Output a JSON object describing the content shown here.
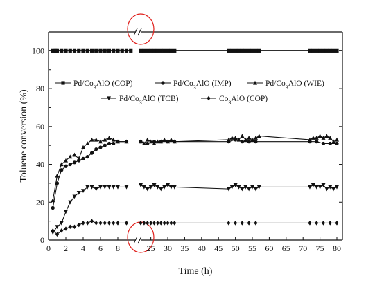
{
  "chart_data": {
    "type": "line",
    "title": "",
    "xlabel": "Time (h)",
    "ylabel": "Toluene conversion (%)",
    "ylim": [
      0,
      110
    ],
    "x_break": {
      "from": 10,
      "to": 22
    },
    "x_ticks_left": [
      0,
      2,
      4,
      6,
      8
    ],
    "x_ticks_right": [
      25,
      30,
      35,
      40,
      45,
      50,
      55,
      60,
      65,
      70,
      75,
      80
    ],
    "y_ticks": [
      0,
      20,
      40,
      60,
      80,
      100
    ],
    "legend_placement": "center",
    "series": [
      {
        "name": "Pd/Co3AlO (COP)",
        "legend_sub": "3",
        "marker": "square",
        "x": [
          0.5,
          0.8,
          1,
          1.5,
          2,
          2.5,
          3,
          3.5,
          4,
          4.5,
          5,
          5.5,
          6,
          6.5,
          7,
          7.5,
          8,
          8.5,
          9,
          9.5,
          22,
          23,
          24,
          25,
          26,
          27,
          28,
          29,
          30,
          31,
          32,
          48,
          49,
          50,
          51,
          52,
          53,
          54,
          55,
          56,
          57,
          72,
          73,
          74,
          75,
          76,
          77,
          78,
          79,
          80
        ],
        "values": [
          100,
          100,
          100,
          100,
          100,
          100,
          100,
          100,
          100,
          100,
          100,
          100,
          100,
          100,
          100,
          100,
          100,
          100,
          100,
          100,
          100,
          100,
          100,
          100,
          100,
          100,
          100,
          100,
          100,
          100,
          100,
          100,
          100,
          100,
          100,
          100,
          100,
          100,
          100,
          100,
          100,
          100,
          100,
          100,
          100,
          100,
          100,
          100,
          100,
          100
        ]
      },
      {
        "name": "Pd/Co3AlO (IMP)",
        "legend_sub": "3",
        "marker": "circle",
        "x": [
          0.5,
          1,
          1.5,
          2,
          2.5,
          3,
          3.5,
          4,
          4.5,
          5,
          5.5,
          6,
          6.5,
          7,
          7.5,
          8,
          9,
          22,
          24,
          26,
          28,
          30,
          32,
          48,
          50,
          52,
          54,
          56,
          72,
          74,
          76,
          78,
          80
        ],
        "values": [
          17,
          30,
          37,
          39,
          40,
          41,
          42,
          43,
          44,
          46,
          48,
          49,
          50,
          51,
          51,
          52,
          52,
          52,
          51,
          52,
          52,
          52,
          52,
          52,
          53,
          52,
          52,
          52,
          52,
          52,
          51,
          51,
          51
        ]
      },
      {
        "name": "Pd/Co3AlO (WIE)",
        "legend_sub": "3",
        "marker": "triangle-up",
        "x": [
          0.5,
          1,
          1.5,
          2,
          2.5,
          3,
          3.5,
          4,
          4.5,
          5,
          5.5,
          6,
          6.5,
          7,
          7.5,
          8,
          9,
          22,
          23,
          24,
          25,
          26,
          27,
          28,
          29,
          30,
          31,
          32,
          48,
          49,
          50,
          51,
          52,
          53,
          54,
          55,
          56,
          57,
          72,
          73,
          74,
          75,
          76,
          77,
          78,
          79,
          80
        ],
        "values": [
          21,
          34,
          40,
          42,
          44,
          45,
          43,
          49,
          51,
          53,
          53,
          52,
          53,
          54,
          53,
          52,
          52,
          52,
          51,
          53,
          52,
          51,
          52,
          52,
          53,
          52,
          53,
          52,
          53,
          54,
          54,
          53,
          55,
          53,
          54,
          53,
          54,
          55,
          53,
          54,
          54,
          55,
          54,
          55,
          54,
          52,
          53
        ]
      },
      {
        "name": "Pd/Co3AlO (TCB)",
        "legend_sub": "3",
        "marker": "triangle-down",
        "x": [
          0.5,
          1,
          1.5,
          2,
          2.5,
          3,
          3.5,
          4,
          4.5,
          5,
          5.5,
          6,
          6.5,
          7,
          7.5,
          8,
          9,
          22,
          23,
          24,
          25,
          26,
          27,
          28,
          29,
          30,
          31,
          32,
          48,
          49,
          50,
          51,
          52,
          53,
          54,
          55,
          56,
          57,
          72,
          73,
          74,
          75,
          76,
          77,
          78,
          79,
          80
        ],
        "values": [
          4,
          7,
          9,
          15,
          20,
          23,
          25,
          26,
          28,
          28,
          27,
          28,
          28,
          28,
          28,
          28,
          28,
          29,
          28,
          27,
          28,
          29,
          28,
          27,
          28,
          29,
          28,
          28,
          27,
          28,
          29,
          28,
          27,
          28,
          27,
          28,
          27,
          28,
          28,
          29,
          28,
          28,
          29,
          27,
          28,
          27,
          28
        ]
      },
      {
        "name": "Co3AlO (COP)",
        "legend_sub": "3",
        "marker": "diamond",
        "x": [
          0.5,
          1,
          1.5,
          2,
          2.5,
          3,
          3.5,
          4,
          4.5,
          5,
          5.5,
          6,
          6.5,
          7,
          7.5,
          8,
          9,
          22,
          23,
          24,
          25,
          26,
          27,
          28,
          29,
          30,
          31,
          32,
          48,
          50,
          52,
          54,
          56,
          72,
          74,
          76,
          78,
          80
        ],
        "values": [
          5,
          3,
          5,
          6,
          7,
          7,
          8,
          9,
          9,
          10,
          9,
          9,
          9,
          9,
          9,
          9,
          9,
          9,
          9,
          9,
          9,
          9,
          9,
          9,
          9,
          9,
          9,
          9,
          9,
          9,
          9,
          9,
          9,
          9,
          9,
          9,
          9,
          9
        ]
      }
    ]
  }
}
